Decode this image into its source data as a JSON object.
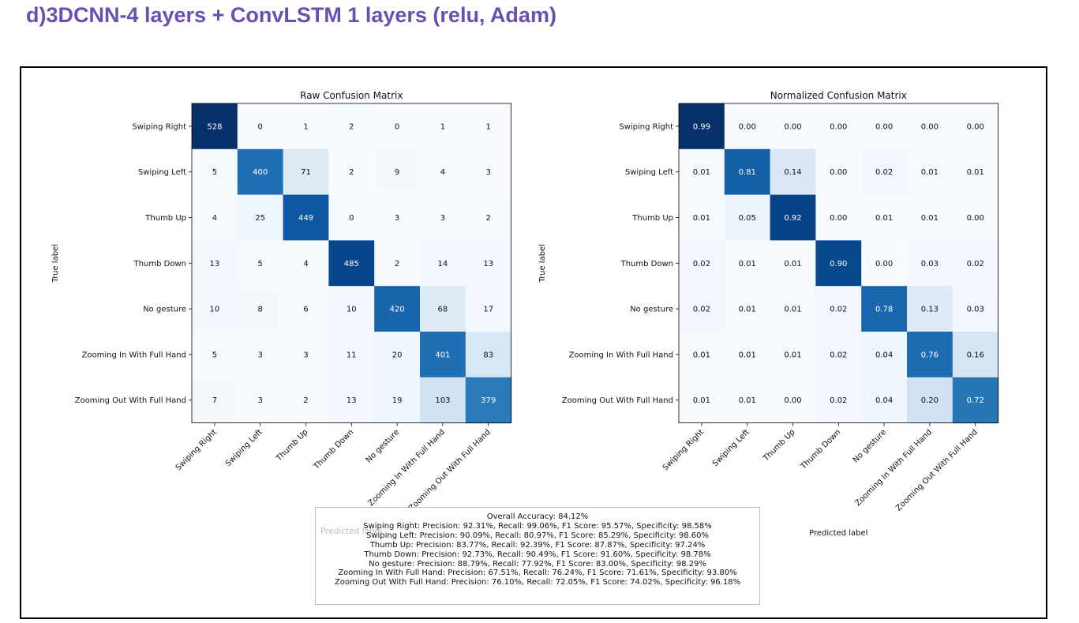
{
  "heading": "d)3DCNN-4 layers + ConvLSTM 1 layers (relu, Adam)",
  "colors": {
    "heading": "#6b4fb0",
    "colormap": "Blues",
    "frame_border": "#000000"
  },
  "chart_data": [
    {
      "type": "heatmap",
      "title": "Raw Confusion Matrix",
      "ylabel": "True label",
      "xlabel": "Predicted label",
      "rows": [
        "Swiping Right",
        "Swiping Left",
        "Thumb Up",
        "Thumb Down",
        "No gesture",
        "Zooming In With Full Hand",
        "Zooming Out With Full Hand"
      ],
      "columns": [
        "Swiping Right",
        "Swiping Left",
        "Thumb Up",
        "Thumb Down",
        "No gesture",
        "Zooming In With Full Hand",
        "Zooming Out With Full Hand"
      ],
      "values": [
        [
          528,
          0,
          1,
          2,
          0,
          1,
          1
        ],
        [
          5,
          400,
          71,
          2,
          9,
          4,
          3
        ],
        [
          4,
          25,
          449,
          0,
          3,
          3,
          2
        ],
        [
          13,
          5,
          4,
          485,
          2,
          14,
          13
        ],
        [
          10,
          8,
          6,
          10,
          420,
          68,
          17
        ],
        [
          5,
          3,
          3,
          11,
          20,
          401,
          83
        ],
        [
          7,
          3,
          2,
          13,
          19,
          103,
          379
        ]
      ],
      "value_format": "int"
    },
    {
      "type": "heatmap",
      "title": "Normalized Confusion Matrix",
      "ylabel": "True label",
      "xlabel": "Predicted label",
      "rows": [
        "Swiping Right",
        "Swiping Left",
        "Thumb Up",
        "Thumb Down",
        "No gesture",
        "Zooming In With Full Hand",
        "Zooming Out With Full Hand"
      ],
      "columns": [
        "Swiping Right",
        "Swiping Left",
        "Thumb Up",
        "Thumb Down",
        "No gesture",
        "Zooming In With Full Hand",
        "Zooming Out With Full Hand"
      ],
      "values": [
        [
          0.99,
          0.0,
          0.0,
          0.0,
          0.0,
          0.0,
          0.0
        ],
        [
          0.01,
          0.81,
          0.14,
          0.0,
          0.02,
          0.01,
          0.01
        ],
        [
          0.01,
          0.05,
          0.92,
          0.0,
          0.01,
          0.01,
          0.0
        ],
        [
          0.02,
          0.01,
          0.01,
          0.9,
          0.0,
          0.03,
          0.02
        ],
        [
          0.02,
          0.01,
          0.01,
          0.02,
          0.78,
          0.13,
          0.03
        ],
        [
          0.01,
          0.01,
          0.01,
          0.02,
          0.04,
          0.76,
          0.16
        ],
        [
          0.01,
          0.01,
          0.0,
          0.02,
          0.04,
          0.2,
          0.72
        ]
      ],
      "value_format": "2dp"
    }
  ],
  "metrics": {
    "lines": [
      "Overall Accuracy: 84.12%",
      "Swiping Right: Precision: 92.31%, Recall: 99.06%, F1 Score: 95.57%, Specificity: 98.58%",
      "Swiping Left: Precision: 90.09%, Recall: 80.97%, F1 Score: 85.29%, Specificity: 98.60%",
      "Thumb Up: Precision: 83.77%, Recall: 92.39%, F1 Score: 87.87%, Specificity: 97.24%",
      "Thumb Down: Precision: 92.73%, Recall: 90.49%, F1 Score: 91.60%, Specificity: 98.78%",
      "No gesture: Precision: 88.79%, Recall: 77.92%, F1 Score: 83.00%, Specificity: 98.29%",
      "Zooming In With Full Hand: Precision: 67.51%, Recall: 76.24%, F1 Score: 71.61%, Specificity: 93.80%",
      "Zooming Out With Full Hand: Precision: 76.10%, Recall: 72.05%, F1 Score: 74.02%, Specificity: 96.18%"
    ]
  }
}
